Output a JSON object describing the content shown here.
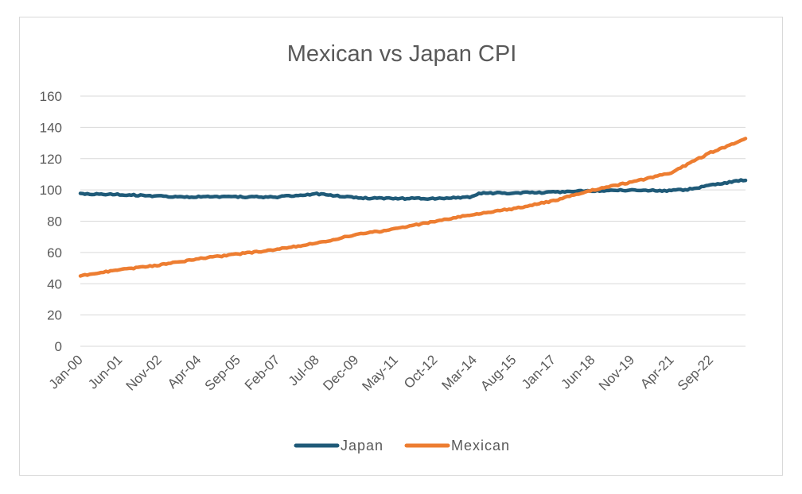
{
  "chart_data": {
    "type": "line",
    "title": "Mexican vs Japan CPI",
    "xlabel": "",
    "ylabel": "",
    "ylim": [
      0,
      160
    ],
    "y_ticks": [
      "0",
      "20",
      "40",
      "60",
      "80",
      "100",
      "120",
      "140",
      "160"
    ],
    "x_tick_labels": [
      "Jan-00",
      "Jun-01",
      "Nov-02",
      "Apr-04",
      "Sep-05",
      "Feb-07",
      "Jul-08",
      "Dec-09",
      "May-11",
      "Oct-12",
      "Mar-14",
      "Aug-15",
      "Jan-17",
      "Jun-18",
      "Nov-19",
      "Apr-21",
      "Sep-22"
    ],
    "x_range_months": [
      "Jan-00",
      "Dec-23"
    ],
    "grid": "horizontal",
    "legend_position": "bottom",
    "series": [
      {
        "name": "Japan",
        "color": "#1f5a78",
        "points": [
          {
            "x": "Jan-00",
            "y": 97.5
          },
          {
            "x": "Jun-01",
            "y": 97
          },
          {
            "x": "Nov-02",
            "y": 96
          },
          {
            "x": "Apr-04",
            "y": 95.5
          },
          {
            "x": "Sep-05",
            "y": 95.5
          },
          {
            "x": "Feb-07",
            "y": 95.5
          },
          {
            "x": "Jul-08",
            "y": 97.5
          },
          {
            "x": "Dec-09",
            "y": 95
          },
          {
            "x": "May-11",
            "y": 94.5
          },
          {
            "x": "Oct-12",
            "y": 94.5
          },
          {
            "x": "Feb-14",
            "y": 95.5
          },
          {
            "x": "May-14",
            "y": 98
          },
          {
            "x": "Aug-15",
            "y": 98
          },
          {
            "x": "Jan-17",
            "y": 98.5
          },
          {
            "x": "Jun-18",
            "y": 99.5
          },
          {
            "x": "Nov-19",
            "y": 100
          },
          {
            "x": "Apr-21",
            "y": 99.5
          },
          {
            "x": "Dec-21",
            "y": 100.5
          },
          {
            "x": "Sep-22",
            "y": 103
          },
          {
            "x": "Dec-23",
            "y": 106.5
          }
        ]
      },
      {
        "name": "Mexican",
        "color": "#ed7d31",
        "points": [
          {
            "x": "Jan-00",
            "y": 45
          },
          {
            "x": "Jun-01",
            "y": 49
          },
          {
            "x": "Nov-02",
            "y": 52
          },
          {
            "x": "Apr-04",
            "y": 56
          },
          {
            "x": "Sep-05",
            "y": 59
          },
          {
            "x": "Feb-07",
            "y": 62
          },
          {
            "x": "Jul-08",
            "y": 66
          },
          {
            "x": "Dec-09",
            "y": 71.5
          },
          {
            "x": "May-11",
            "y": 75
          },
          {
            "x": "Oct-12",
            "y": 80
          },
          {
            "x": "Mar-14",
            "y": 84.5
          },
          {
            "x": "Aug-15",
            "y": 88
          },
          {
            "x": "Jan-17",
            "y": 93
          },
          {
            "x": "Jun-18",
            "y": 100
          },
          {
            "x": "Nov-19",
            "y": 105
          },
          {
            "x": "Apr-21",
            "y": 111
          },
          {
            "x": "Sep-22",
            "y": 124
          },
          {
            "x": "Dec-23",
            "y": 132.5
          }
        ]
      }
    ]
  }
}
